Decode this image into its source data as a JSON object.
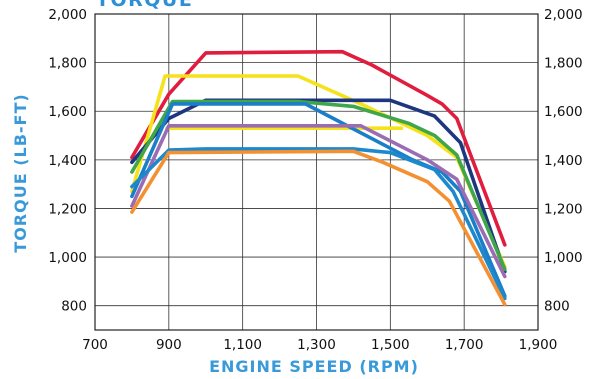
{
  "chart_data": {
    "type": "line",
    "title": "TORQUE",
    "xlabel": "ENGINE SPEED (RPM)",
    "ylabel": "TORQUE (LB-FT)",
    "xlim": [
      700,
      1900
    ],
    "ylim": [
      700,
      2000
    ],
    "x_ticks": [
      "700",
      "900",
      "1,100",
      "1,300",
      "1,500",
      "1,700",
      "1,900"
    ],
    "x_tick_values": [
      700,
      900,
      1100,
      1300,
      1500,
      1700,
      1900
    ],
    "y_ticks": [
      "800",
      "1,000",
      "1,200",
      "1,400",
      "1,600",
      "1,800",
      "2,000"
    ],
    "y_tick_values": [
      800,
      1000,
      1200,
      1400,
      1600,
      1800,
      2000
    ],
    "grid": true,
    "right_axis_mirrored": true,
    "series": [
      {
        "color": "#e11d3f",
        "points": [
          [
            800,
            1410
          ],
          [
            900,
            1670
          ],
          [
            1000,
            1840
          ],
          [
            1370,
            1845
          ],
          [
            1450,
            1790
          ],
          [
            1600,
            1665
          ],
          [
            1640,
            1630
          ],
          [
            1680,
            1570
          ],
          [
            1810,
            1050
          ]
        ]
      },
      {
        "color": "#f5e21a",
        "points": [
          [
            800,
            1270
          ],
          [
            890,
            1745
          ],
          [
            1250,
            1745
          ],
          [
            1420,
            1630
          ],
          [
            1600,
            1500
          ],
          [
            1680,
            1410
          ],
          [
            1810,
            960
          ]
        ]
      },
      {
        "color": "#f5e21a",
        "points": [
          [
            895,
            1530
          ],
          [
            1530,
            1530
          ]
        ]
      },
      {
        "color": "#1e3680",
        "points": [
          [
            800,
            1390
          ],
          [
            900,
            1570
          ],
          [
            1000,
            1645
          ],
          [
            1370,
            1645
          ],
          [
            1500,
            1645
          ],
          [
            1620,
            1580
          ],
          [
            1690,
            1470
          ],
          [
            1810,
            940
          ]
        ]
      },
      {
        "color": "#3fa64a",
        "points": [
          [
            800,
            1350
          ],
          [
            910,
            1640
          ],
          [
            1250,
            1640
          ],
          [
            1400,
            1620
          ],
          [
            1550,
            1550
          ],
          [
            1620,
            1500
          ],
          [
            1680,
            1420
          ],
          [
            1810,
            950
          ]
        ]
      },
      {
        "color": "#1a7ec8",
        "points": [
          [
            800,
            1250
          ],
          [
            910,
            1630
          ],
          [
            1270,
            1630
          ],
          [
            1560,
            1400
          ],
          [
            1640,
            1350
          ],
          [
            1690,
            1270
          ],
          [
            1810,
            840
          ]
        ]
      },
      {
        "color": "#9a6cb4",
        "points": [
          [
            800,
            1210
          ],
          [
            900,
            1540
          ],
          [
            1420,
            1540
          ],
          [
            1600,
            1400
          ],
          [
            1680,
            1320
          ],
          [
            1810,
            920
          ]
        ]
      },
      {
        "color": "#1e88cc",
        "points": [
          [
            800,
            1290
          ],
          [
            900,
            1440
          ],
          [
            1000,
            1445
          ],
          [
            1400,
            1445
          ],
          [
            1500,
            1430
          ],
          [
            1620,
            1360
          ],
          [
            1670,
            1270
          ],
          [
            1810,
            830
          ]
        ]
      },
      {
        "color": "#f39132",
        "points": [
          [
            800,
            1185
          ],
          [
            900,
            1430
          ],
          [
            1400,
            1435
          ],
          [
            1480,
            1390
          ],
          [
            1600,
            1310
          ],
          [
            1660,
            1230
          ],
          [
            1810,
            805
          ]
        ]
      }
    ]
  }
}
